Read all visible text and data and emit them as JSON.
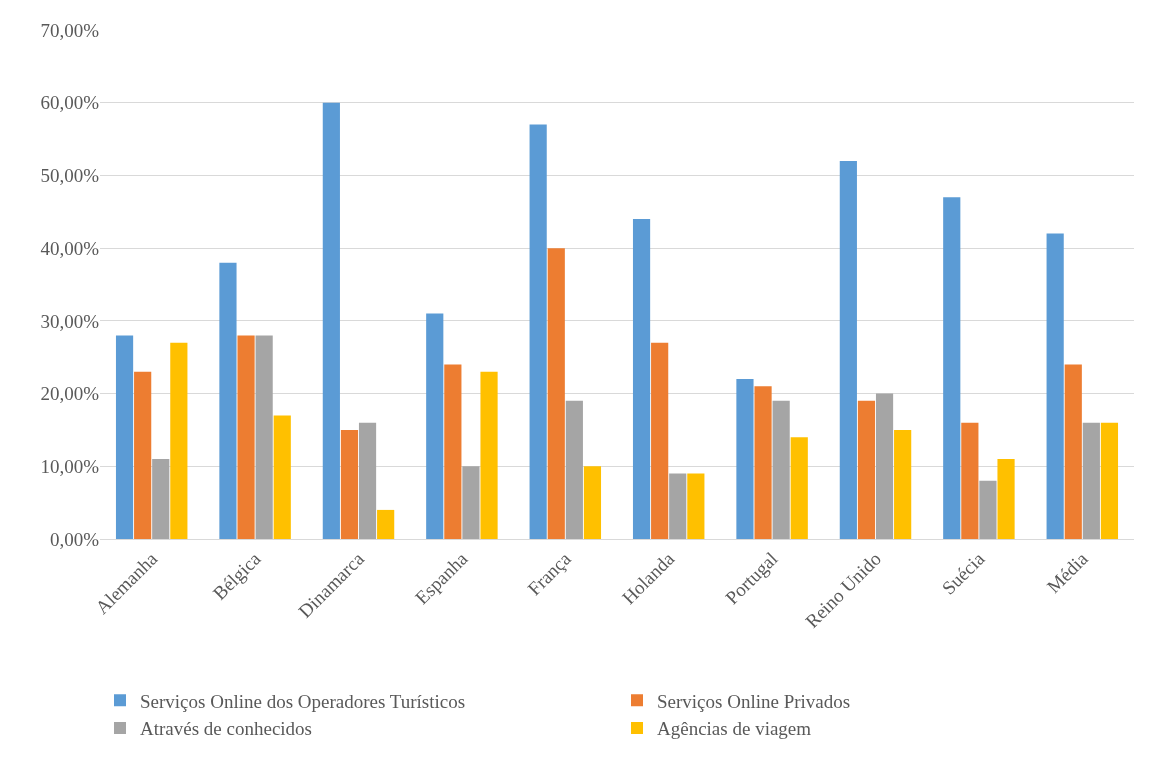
{
  "chart_data": {
    "type": "bar",
    "categories": [
      "Alemanha",
      "Bélgica",
      "Dinamarca",
      "Espanha",
      "França",
      "Holanda",
      "Portugal",
      "Reino Unido",
      "Suécia",
      "Média"
    ],
    "series": [
      {
        "name": "Serviços Online dos Operadores Turísticos",
        "color": "#5b9bd5",
        "values": [
          28,
          38,
          60,
          31,
          57,
          44,
          22,
          52,
          47,
          42
        ]
      },
      {
        "name": "Serviços Online Privados",
        "color": "#ed7d31",
        "values": [
          23,
          28,
          15,
          24,
          40,
          27,
          21,
          19,
          16,
          24
        ]
      },
      {
        "name": "Através de conhecidos",
        "color": "#a5a5a5",
        "values": [
          11,
          28,
          16,
          10,
          19,
          9,
          19,
          20,
          8,
          16
        ]
      },
      {
        "name": "Agências de viagem",
        "color": "#ffc000",
        "values": [
          27,
          17,
          4,
          23,
          10,
          9,
          14,
          15,
          11,
          16
        ]
      }
    ],
    "ylim": [
      0,
      70
    ],
    "yticks": [
      {
        "value": 0,
        "label": "0,00%"
      },
      {
        "value": 10,
        "label": "10,00%"
      },
      {
        "value": 20,
        "label": "20,00%"
      },
      {
        "value": 30,
        "label": "30,00%"
      },
      {
        "value": 40,
        "label": "40,00%"
      },
      {
        "value": 50,
        "label": "50,00%"
      },
      {
        "value": 60,
        "label": "60,00%"
      },
      {
        "value": 70,
        "label": "70,00%"
      }
    ],
    "grid": "y",
    "legend": "bottom"
  }
}
